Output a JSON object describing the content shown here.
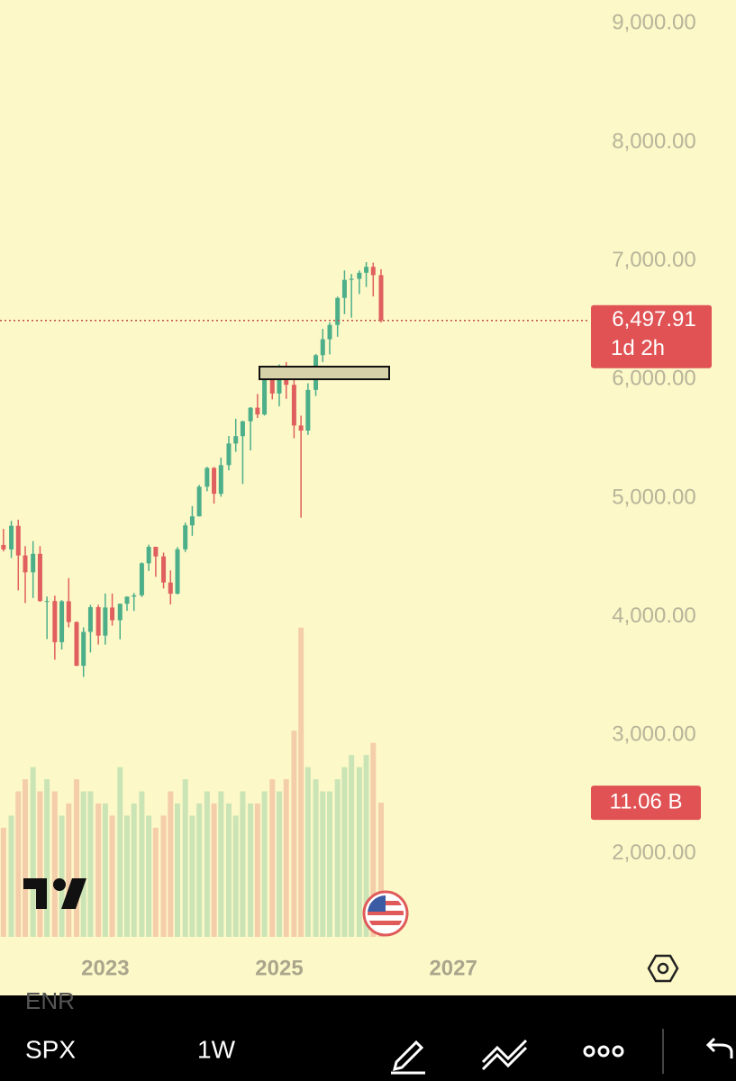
{
  "chart_data": {
    "type": "candlestick",
    "x": [
      2021.83,
      2021.92,
      2022.0,
      2022.08,
      2022.17,
      2022.25,
      2022.33,
      2022.42,
      2022.5,
      2022.58,
      2022.67,
      2022.75,
      2022.83,
      2022.92,
      2023.0,
      2023.08,
      2023.17,
      2023.25,
      2023.33,
      2023.42,
      2023.5,
      2023.58,
      2023.67,
      2023.75,
      2023.83,
      2023.92,
      2024.0,
      2024.08,
      2024.17,
      2024.25,
      2024.33,
      2024.42,
      2024.5,
      2024.58,
      2024.67,
      2024.75,
      2024.83,
      2024.92,
      2025.0,
      2025.08,
      2025.17,
      2025.25,
      2025.33,
      2025.42,
      2025.5,
      2025.58,
      2025.67,
      2025.75,
      2025.83,
      2025.92,
      2026.0,
      2026.08,
      2026.17
    ],
    "open": [
      4605,
      4567,
      4766,
      4516,
      4374,
      4530,
      4132,
      4132,
      3785,
      4130,
      3955,
      3586,
      3872,
      4080,
      3840,
      4077,
      3970,
      4109,
      4169,
      4180,
      4450,
      4589,
      4508,
      4288,
      4194,
      4568,
      4770,
      4846,
      5096,
      5254,
      5036,
      5278,
      5460,
      5522,
      5648,
      5762,
      5705,
      6032,
      5882,
      6040,
      5955,
      5612,
      5569,
      5912,
      6205,
      6339,
      6460,
      6688,
      6840,
      6849,
      6900,
      6950,
      6880
    ],
    "high": [
      4740,
      4808,
      4818,
      4595,
      4637,
      4595,
      4170,
      4177,
      4140,
      4325,
      3960,
      3910,
      4100,
      4100,
      4195,
      4195,
      4110,
      4170,
      4200,
      4458,
      4607,
      4590,
      4540,
      4390,
      4587,
      4793,
      4932,
      5111,
      5264,
      5263,
      5341,
      5523,
      5669,
      5651,
      5767,
      5878,
      6017,
      6100,
      6128,
      6147,
      6010,
      5695,
      5968,
      6215,
      6427,
      6481,
      6699,
      6920,
      6890,
      6920,
      6990,
      6985,
      6930
    ],
    "low": [
      4550,
      4495,
      4222,
      4115,
      4157,
      4125,
      3811,
      3637,
      3723,
      3910,
      3584,
      3492,
      3698,
      3765,
      3764,
      3925,
      3809,
      4049,
      4048,
      4166,
      4385,
      4336,
      4238,
      4103,
      4187,
      4546,
      4682,
      4845,
      5057,
      4953,
      5011,
      5234,
      5390,
      5119,
      5402,
      5675,
      5696,
      5832,
      5773,
      5837,
      5505,
      4835,
      5533,
      5861,
      6147,
      6212,
      6360,
      6551,
      6521,
      6720,
      6780,
      6700,
      6480
    ],
    "close": [
      4567,
      4766,
      4516,
      4374,
      4530,
      4132,
      4132,
      3785,
      4130,
      3955,
      3586,
      3872,
      4080,
      3840,
      4077,
      3970,
      4109,
      4169,
      4180,
      4450,
      4589,
      4508,
      4288,
      4194,
      4568,
      4770,
      4846,
      5096,
      5254,
      5036,
      5278,
      5460,
      5522,
      5648,
      5762,
      5705,
      6032,
      5882,
      6040,
      5955,
      5612,
      5569,
      5912,
      6205,
      6339,
      6460,
      6688,
      6840,
      6849,
      6900,
      6950,
      6880,
      6497.91
    ],
    "volume": [
      9,
      10,
      12,
      13,
      14,
      12,
      13,
      12,
      10,
      11,
      13,
      12,
      12,
      11,
      11,
      10,
      14,
      10,
      11,
      12,
      10,
      9,
      10,
      12,
      11,
      13,
      10,
      11,
      12,
      11,
      12,
      11,
      10,
      12,
      11,
      11,
      12,
      13,
      12,
      13,
      17,
      25.5,
      14,
      13,
      12,
      12,
      13,
      14,
      15,
      14,
      15,
      16,
      11.06
    ],
    "up_color": "#4caf8a",
    "down_color": "#e0605f",
    "xlim": [
      2021.79,
      2030.25
    ],
    "xticks": [
      2023,
      2025,
      2027
    ],
    "ylim": [
      1300,
      9200
    ],
    "yticks": [
      {
        "value": 9000,
        "label": "9,000.00"
      },
      {
        "value": 8000,
        "label": "8,000.00"
      },
      {
        "value": 7000,
        "label": "7,000.00"
      },
      {
        "value": 6000,
        "label": "6,000.00"
      },
      {
        "value": 5000,
        "label": "5,000.00"
      },
      {
        "value": 4000,
        "label": "4,000.00"
      },
      {
        "value": 3000,
        "label": "3,000.00"
      },
      {
        "value": 2000,
        "label": "2,000.00"
      }
    ],
    "volume_lim": [
      0,
      26
    ],
    "last_price": {
      "value": 6497.91,
      "label": "6,497.91"
    },
    "countdown": "1d 2h",
    "volume_label": {
      "value": 11.06,
      "label": "11.06 B"
    }
  },
  "toolbar": {
    "hidden_symbol": "ENR",
    "symbol": "SPX",
    "interval": "1W"
  }
}
